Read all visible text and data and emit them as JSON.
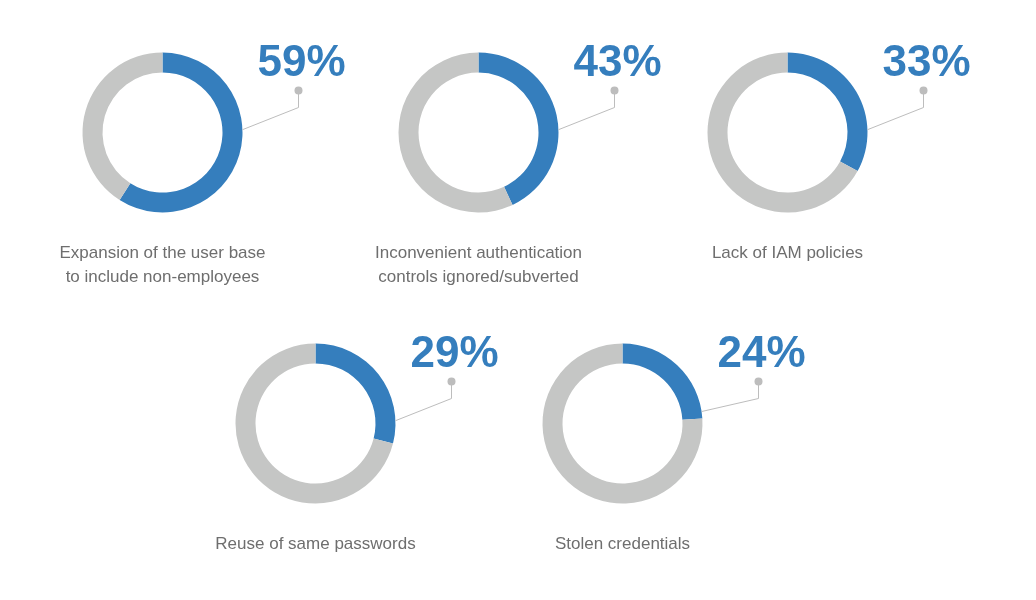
{
  "chart_data": [
    {
      "type": "donut",
      "title": "Expansion of the user base\nto include non-employees",
      "categories": [
        null,
        null
      ],
      "values": [
        59,
        41
      ],
      "colors": [
        "#357ebd",
        "#c5c6c5"
      ],
      "value_labels": [
        "59%",
        null
      ]
    },
    {
      "type": "donut",
      "title": "Inconvenient authentication\ncontrols ignored/subverted",
      "categories": [
        null,
        null
      ],
      "values": [
        43,
        57
      ],
      "colors": [
        "#357ebd",
        "#c5c6c5"
      ],
      "value_labels": [
        "43%",
        null
      ]
    },
    {
      "type": "donut",
      "title": "Lack of IAM policies",
      "categories": [
        null,
        null
      ],
      "values": [
        33,
        67
      ],
      "colors": [
        "#357ebd",
        "#c5c6c5"
      ],
      "value_labels": [
        "33%",
        null
      ]
    },
    {
      "type": "donut",
      "title": "Reuse of same passwords",
      "categories": [
        null,
        null
      ],
      "values": [
        29,
        71
      ],
      "colors": [
        "#357ebd",
        "#c5c6c5"
      ],
      "value_labels": [
        "29%",
        null
      ]
    },
    {
      "type": "donut",
      "title": "Stolen credentials",
      "categories": [
        null,
        null
      ],
      "values": [
        24,
        76
      ],
      "colors": [
        "#357ebd",
        "#c5c6c5"
      ],
      "value_labels": [
        "24%",
        null
      ]
    }
  ]
}
